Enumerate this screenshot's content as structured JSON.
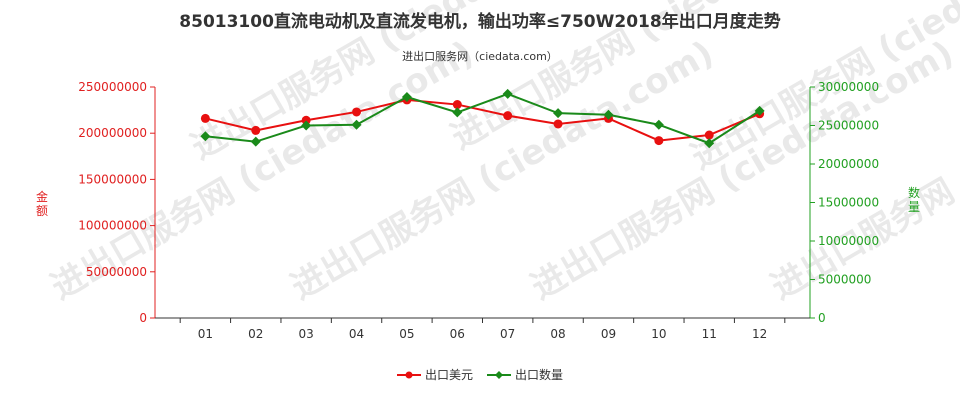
{
  "chart_data": {
    "type": "line",
    "title": "85013100直流电动机及直流发电机，输出功率≤750W2018年出口月度走势",
    "subtitle": "进出口服务网（ciedata.com）",
    "watermark": "进出口服务网 (ciedata.com)",
    "categories": [
      "01",
      "02",
      "03",
      "04",
      "05",
      "06",
      "07",
      "08",
      "09",
      "10",
      "11",
      "12"
    ],
    "y_left": {
      "label": "金额",
      "range": [
        0,
        250000000
      ],
      "ticks": [
        "0",
        "50000000",
        "100000000",
        "150000000",
        "200000000",
        "250000000"
      ],
      "color": "#e02020"
    },
    "y_right": {
      "label": "数量",
      "range": [
        0,
        30000000
      ],
      "ticks": [
        "0",
        "5000000",
        "10000000",
        "15000000",
        "20000000",
        "25000000",
        "30000000"
      ],
      "color": "#22a022"
    },
    "series": [
      {
        "name": "出口美元",
        "axis": "left",
        "color": "#e81010",
        "values": [
          216000000,
          203000000,
          214000000,
          223000000,
          236000000,
          231000000,
          219000000,
          210000000,
          216000000,
          192000000,
          198000000,
          221000000
        ]
      },
      {
        "name": "出口数量",
        "axis": "right",
        "color": "#1a8a1a",
        "values": [
          23600000,
          22900000,
          25000000,
          25100000,
          28700000,
          26700000,
          29100000,
          26600000,
          26400000,
          25100000,
          22700000,
          26900000
        ]
      }
    ],
    "legend_position": "bottom-center",
    "grid": false
  }
}
